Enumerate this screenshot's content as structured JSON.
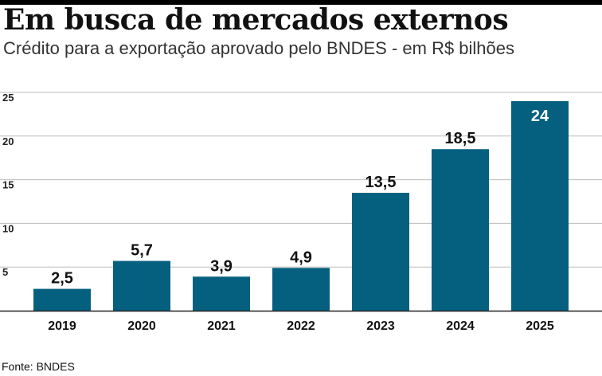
{
  "header": {
    "title": "Em busca de mercados externos",
    "subtitle": "Crédito para a exportação aprovado pelo BNDES - em R$ bilhões"
  },
  "footer": {
    "source": "Fonte: BNDES"
  },
  "colors": {
    "bar": "#05607f",
    "grid": "#bbbbbb",
    "axis": "#222222"
  },
  "chart_data": {
    "type": "bar",
    "title": "Em busca de mercados externos",
    "subtitle": "Crédito para a exportação aprovado pelo BNDES - em R$ bilhões",
    "categories": [
      "2019",
      "2020",
      "2021",
      "2022",
      "2023",
      "2024",
      "2025"
    ],
    "values": [
      2.5,
      5.7,
      3.9,
      4.9,
      13.5,
      18.5,
      24
    ],
    "value_labels": [
      "2,5",
      "5,7",
      "3,9",
      "4,9",
      "13,5",
      "18,5",
      "24"
    ],
    "yticks": [
      5,
      10,
      15,
      20,
      25
    ],
    "ylim": [
      0,
      25
    ],
    "xlabel": "",
    "ylabel": "",
    "grid": true,
    "legend": "none"
  }
}
